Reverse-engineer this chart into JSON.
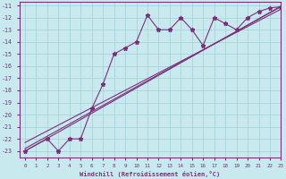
{
  "xlabel": "Windchill (Refroidissement éolien,°C)",
  "x_data": [
    0,
    2,
    3,
    4,
    5,
    6,
    7,
    8,
    9,
    10,
    11,
    12,
    13,
    14,
    15,
    16,
    17,
    18,
    19,
    20,
    21,
    22,
    23
  ],
  "y_data": [
    -23.0,
    -22.0,
    -23.0,
    -22.0,
    -22.0,
    -19.5,
    -17.5,
    -15.0,
    -14.5,
    -14.0,
    -11.8,
    -13.0,
    -13.0,
    -12.0,
    -13.0,
    -14.3,
    -12.0,
    -12.5,
    -13.0,
    -12.0,
    -11.5,
    -11.2,
    -11.1
  ],
  "line1_x": [
    0,
    23
  ],
  "line1_y": [
    -22.8,
    -11.1
  ],
  "line2_x": [
    0,
    23
  ],
  "line2_y": [
    -22.3,
    -11.3
  ],
  "line3_x": [
    0,
    23
  ],
  "line3_y": [
    -23.0,
    -11.05
  ],
  "xlim": [
    -0.5,
    23
  ],
  "ylim": [
    -23.5,
    -10.7
  ],
  "yticks": [
    -23,
    -22,
    -21,
    -20,
    -19,
    -18,
    -17,
    -16,
    -15,
    -14,
    -13,
    -12,
    -11
  ],
  "xticks": [
    0,
    1,
    2,
    3,
    4,
    5,
    6,
    7,
    8,
    9,
    10,
    11,
    12,
    13,
    14,
    15,
    16,
    17,
    18,
    19,
    20,
    21,
    22,
    23
  ],
  "color": "#7b2f7b",
  "bg_color": "#c8eaee",
  "grid_color": "#aad4da",
  "font_color": "#7b2f7b"
}
